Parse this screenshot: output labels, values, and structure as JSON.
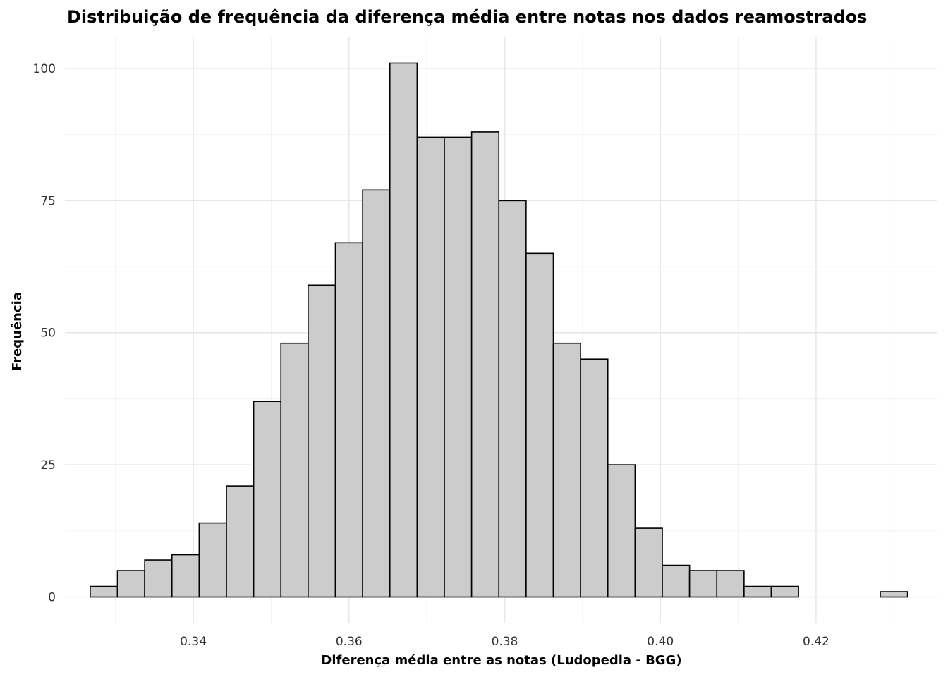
{
  "chart_data": {
    "type": "bar",
    "subtype": "histogram",
    "title": "Distribuição de frequência da diferença média entre notas nos dados reamostrados",
    "xlabel": "Diferença média entre as notas (Ludopedia - BGG)",
    "ylabel": "Frequência",
    "bin_width": 0.0035,
    "bins": [
      {
        "x": 0.3285,
        "count": 2
      },
      {
        "x": 0.332,
        "count": 5
      },
      {
        "x": 0.3355,
        "count": 7
      },
      {
        "x": 0.339,
        "count": 8
      },
      {
        "x": 0.3425,
        "count": 14
      },
      {
        "x": 0.346,
        "count": 21
      },
      {
        "x": 0.3495,
        "count": 37
      },
      {
        "x": 0.353,
        "count": 48
      },
      {
        "x": 0.3565,
        "count": 59
      },
      {
        "x": 0.36,
        "count": 67
      },
      {
        "x": 0.3635,
        "count": 77
      },
      {
        "x": 0.367,
        "count": 101
      },
      {
        "x": 0.3705,
        "count": 87
      },
      {
        "x": 0.374,
        "count": 87
      },
      {
        "x": 0.3775,
        "count": 88
      },
      {
        "x": 0.381,
        "count": 75
      },
      {
        "x": 0.3845,
        "count": 65
      },
      {
        "x": 0.388,
        "count": 48
      },
      {
        "x": 0.3915,
        "count": 45
      },
      {
        "x": 0.395,
        "count": 25
      },
      {
        "x": 0.3985,
        "count": 13
      },
      {
        "x": 0.402,
        "count": 6
      },
      {
        "x": 0.4055,
        "count": 5
      },
      {
        "x": 0.409,
        "count": 5
      },
      {
        "x": 0.4125,
        "count": 2
      },
      {
        "x": 0.416,
        "count": 2
      },
      {
        "x": 0.4195,
        "count": 0
      },
      {
        "x": 0.423,
        "count": 0
      },
      {
        "x": 0.4265,
        "count": 0
      },
      {
        "x": 0.43,
        "count": 1
      }
    ],
    "xlim": [
      0.3235,
      0.4355
    ],
    "ylim": [
      -5,
      106
    ],
    "x_ticks": [
      0.34,
      0.36,
      0.38,
      0.4,
      0.42
    ],
    "x_tick_labels": [
      "0.34",
      "0.36",
      "0.38",
      "0.40",
      "0.42"
    ],
    "y_ticks": [
      0,
      25,
      50,
      75,
      100
    ],
    "y_tick_labels": [
      "0",
      "25",
      "50",
      "75",
      "100"
    ],
    "grid": true,
    "bar_fill": "#cccccc",
    "bar_stroke": "#000000"
  }
}
